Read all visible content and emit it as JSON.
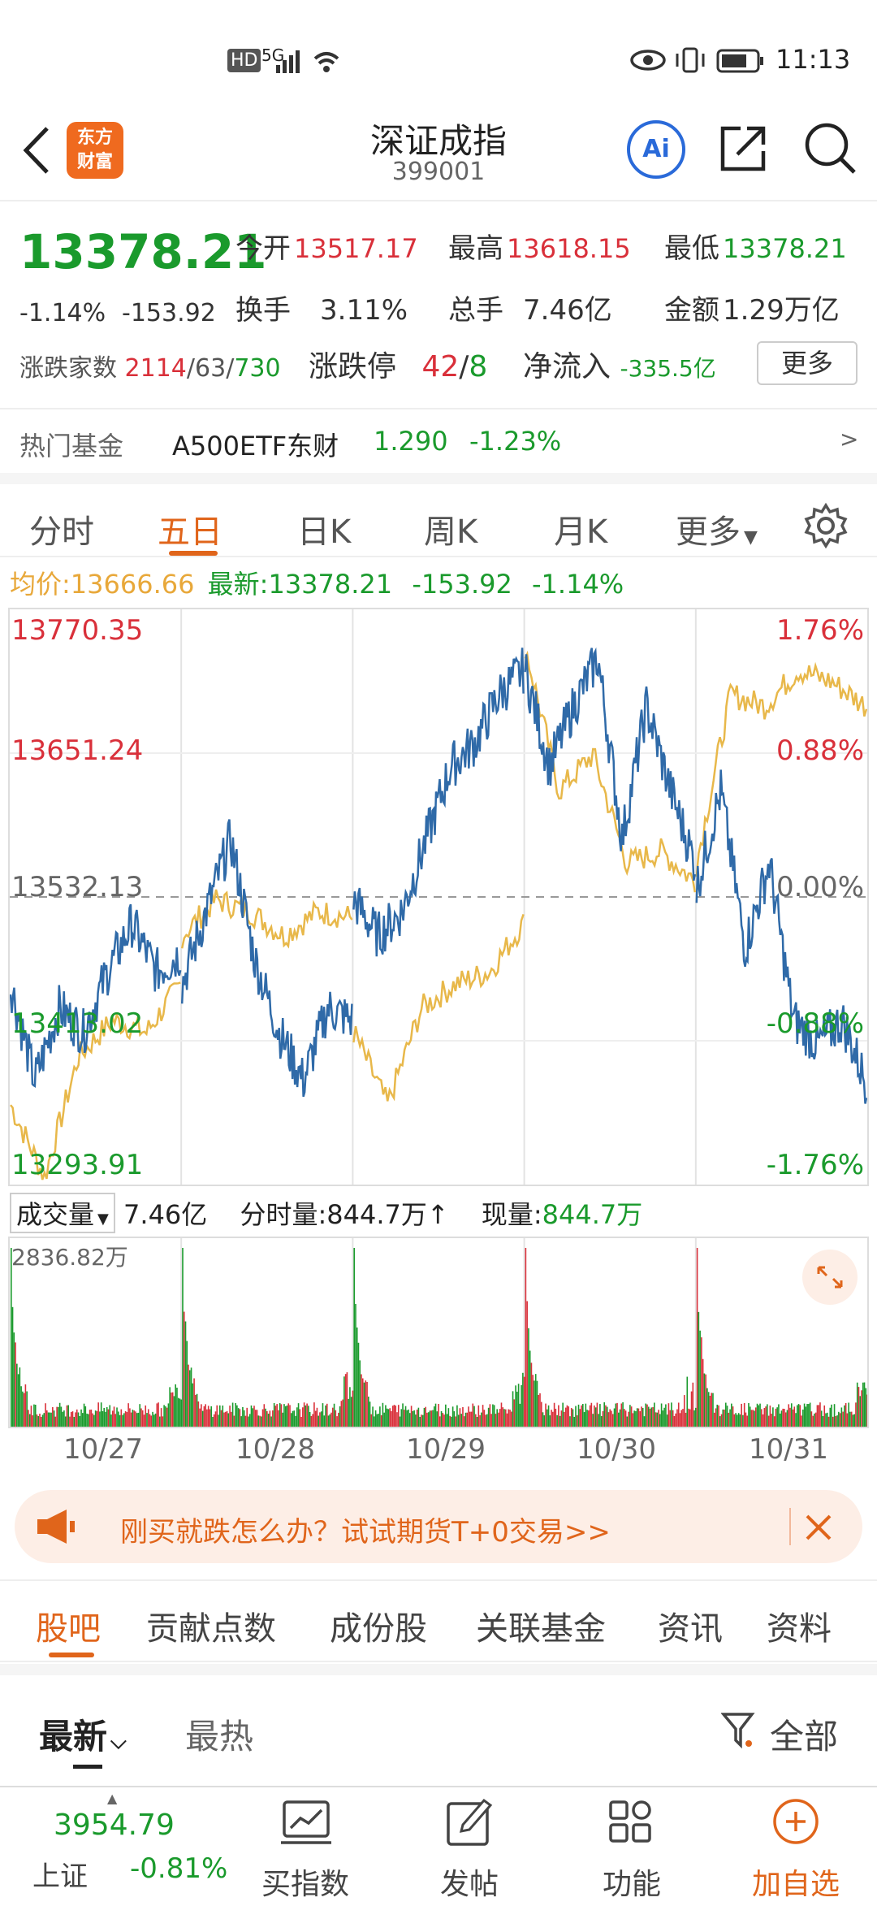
{
  "status_bar": {
    "hd": "HD",
    "network": "5G",
    "time": "11:13"
  },
  "header": {
    "logo_text_line1": "东方",
    "logo_text_line2": "财富",
    "title": "深证成指",
    "code": "399001",
    "ai_label": "Ai"
  },
  "quote": {
    "price": "13378.21",
    "change_pct": "-1.14%",
    "change": "-153.92",
    "open_label": "今开",
    "open": "13517.17",
    "high_label": "最高",
    "high": "13618.15",
    "low_label": "最低",
    "low": "13378.21",
    "turnover_label": "换手",
    "turnover": "3.11%",
    "volume_label": "总手",
    "volume": "7.46亿",
    "amount_label": "金额",
    "amount": "1.29万亿",
    "updown_label": "涨跌家数",
    "up_count": "2114",
    "flat_count": "63",
    "down_count": "730",
    "limit_label": "涨跌停",
    "limit_up": "42",
    "limit_down": "8",
    "netflow_label": "净流入",
    "netflow": "-335.5亿",
    "more_label": "更多",
    "hot_fund_label": "热门基金",
    "hot_fund_name": "A500ETF东财",
    "hot_fund_price": "1.290",
    "hot_fund_change": "-1.23%",
    "fund_arrow": ">"
  },
  "tabs": [
    "分时",
    "五日",
    "日K",
    "周K",
    "月K",
    "更多"
  ],
  "active_tab": "五日",
  "avg_row": {
    "avg_label": "均价:",
    "avg": "13666.66",
    "latest_label": "最新:",
    "latest": "13378.21",
    "change": "-153.92",
    "change_pct": "-1.14%"
  },
  "y_labels_left": [
    "13770.35",
    "13651.24",
    "13532.13",
    "13413.02",
    "13293.91"
  ],
  "y_labels_right": [
    "1.76%",
    "0.88%",
    "0.00%",
    "-0.88%",
    "-1.76%"
  ],
  "volume_header": {
    "select_label": "成交量",
    "total": "7.46亿",
    "tick_label": "分时量:",
    "tick_value": "844.7万",
    "tick_arrow": "↑",
    "now_label": "现量:",
    "now_value": "844.7万",
    "max_label": "2836.82万"
  },
  "x_labels": [
    "10/27",
    "10/28",
    "10/29",
    "10/30",
    "10/31"
  ],
  "chart_data": {
    "type": "line",
    "ylim": [
      13293.91,
      13770.35
    ],
    "x": [
      "10/27",
      "10/28",
      "10/29",
      "10/30",
      "10/31"
    ],
    "series": [
      {
        "color": "#2f6aa8"
      },
      {
        "color": "#e8b84a"
      }
    ],
    "y_ticks": [
      13770.35,
      13651.24,
      13532.13,
      13413.02,
      13293.91
    ],
    "reference": 13532.13
  },
  "banner": {
    "text": "刚买就跌怎么办？试试期货T+0交易>>"
  },
  "lower_tabs": [
    "股吧",
    "贡献点数",
    "成份股",
    "关联基金",
    "资讯",
    "资料"
  ],
  "sort": {
    "latest": "最新",
    "hot": "最热",
    "filter": "全部"
  },
  "bottom_bar": {
    "index_value": "3954.79",
    "index_name": "上证",
    "index_change": "-0.81%",
    "items": [
      "买指数",
      "发帖",
      "功能",
      "加自选"
    ]
  },
  "colors": {
    "up": "#d9303a",
    "down": "#1a9a2c",
    "accent": "#e0651b",
    "line_price": "#2f6aa8",
    "line_avg": "#e8b84a"
  }
}
